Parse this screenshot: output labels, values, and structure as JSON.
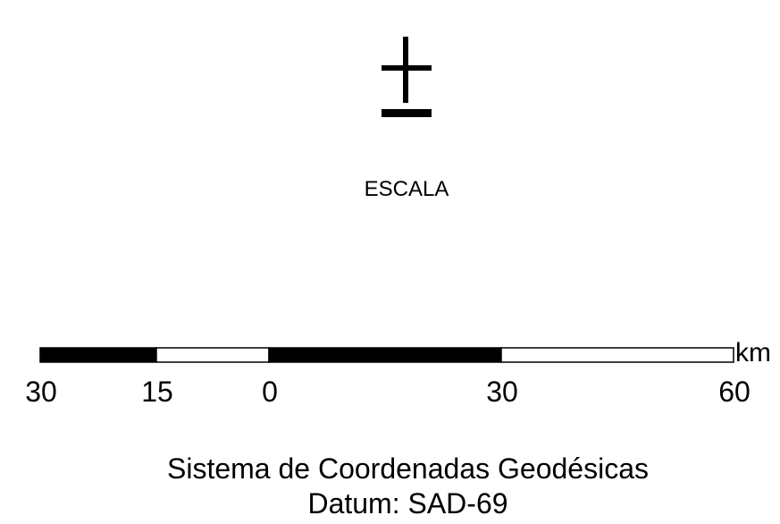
{
  "legend": {
    "title": "ESCALA",
    "unit": "km",
    "scale_ticks": [
      "30",
      "15",
      "0",
      "30",
      "60"
    ],
    "coordinate_system": "Sistema de Coordenadas Geodésicas",
    "datum": "Datum: SAD-69"
  },
  "north_arrow": {
    "icon": "north-arrow-icon"
  },
  "colors": {
    "ink": "#000000",
    "background": "#ffffff"
  }
}
